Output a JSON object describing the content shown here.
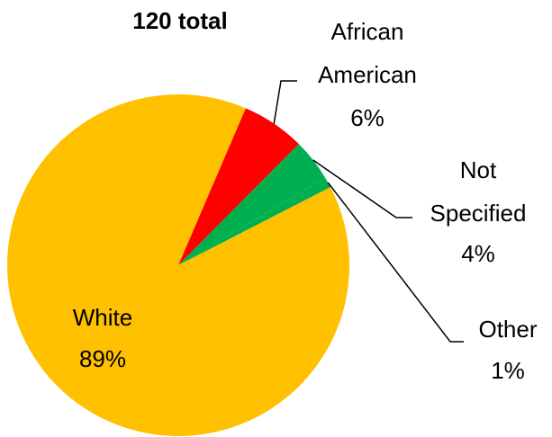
{
  "chart_data": {
    "type": "pie",
    "title": "120 total",
    "start_angle_deg": 23.2,
    "direction": "clockwise",
    "slices": [
      {
        "category": "African American",
        "label_lines": [
          "African",
          "American"
        ],
        "percent_label": "6%",
        "value": 6,
        "color": "#ff0000"
      },
      {
        "category": "Not Specified",
        "label_lines": [
          "Not",
          "Specified"
        ],
        "percent_label": "4%",
        "value": 4,
        "color": "#00b050"
      },
      {
        "category": "Other",
        "label_lines": [
          "Other"
        ],
        "percent_label": "1%",
        "value": 1,
        "color": "#00b050"
      },
      {
        "category": "White",
        "label_lines": [
          "White"
        ],
        "percent_label": "89%",
        "value": 89,
        "color": "#ffc000"
      }
    ],
    "legend": "none"
  }
}
